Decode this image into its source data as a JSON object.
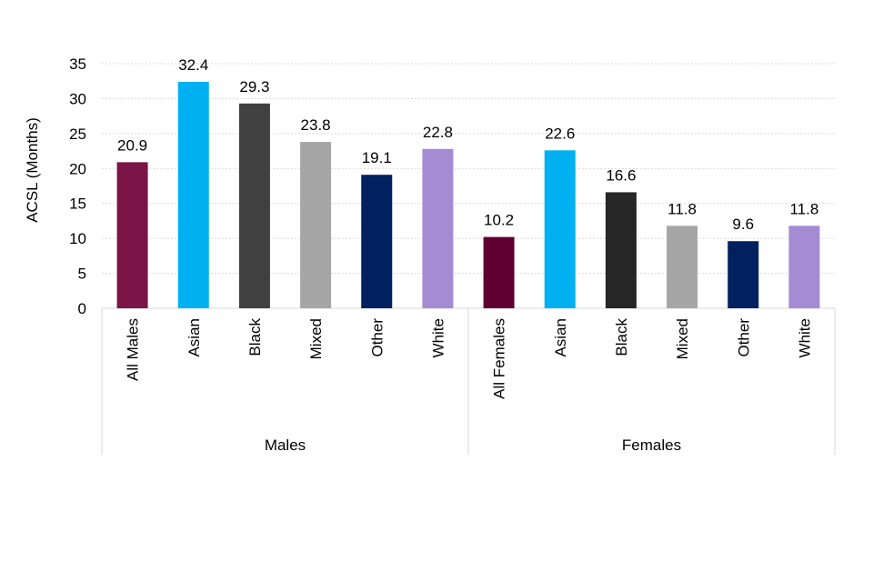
{
  "chart_data": {
    "type": "bar",
    "title": "",
    "xlabel": "",
    "ylabel": "ACSL (Months)",
    "ylim": [
      0,
      35
    ],
    "yticks": [
      0,
      5,
      10,
      15,
      20,
      25,
      30,
      35
    ],
    "grid": "horizontal-dotted",
    "groups": [
      {
        "name": "Males",
        "bars": [
          {
            "category": "All Males",
            "value": 20.9,
            "label": "20.9",
            "color": "#7b1547"
          },
          {
            "category": "Asian",
            "value": 32.4,
            "label": "32.4",
            "color": "#00b0f0"
          },
          {
            "category": "Black",
            "value": 29.3,
            "label": "29.3",
            "color": "#404040"
          },
          {
            "category": "Mixed",
            "value": 23.8,
            "label": "23.8",
            "color": "#a6a6a6"
          },
          {
            "category": "Other",
            "value": 19.1,
            "label": "19.1",
            "color": "#002060"
          },
          {
            "category": "White",
            "value": 22.8,
            "label": "22.8",
            "color": "#a58bd3"
          }
        ]
      },
      {
        "name": "Females",
        "bars": [
          {
            "category": "All Females",
            "value": 10.2,
            "label": "10.2",
            "color": "#5f0032"
          },
          {
            "category": "Asian",
            "value": 22.6,
            "label": "22.6",
            "color": "#00b0f0"
          },
          {
            "category": "Black",
            "value": 16.6,
            "label": "16.6",
            "color": "#262626"
          },
          {
            "category": "Mixed",
            "value": 11.8,
            "label": "11.8",
            "color": "#a6a6a6"
          },
          {
            "category": "Other",
            "value": 9.6,
            "label": "9.6",
            "color": "#002060"
          },
          {
            "category": "White",
            "value": 11.8,
            "label": "11.8",
            "color": "#a58bd3"
          }
        ]
      }
    ]
  }
}
